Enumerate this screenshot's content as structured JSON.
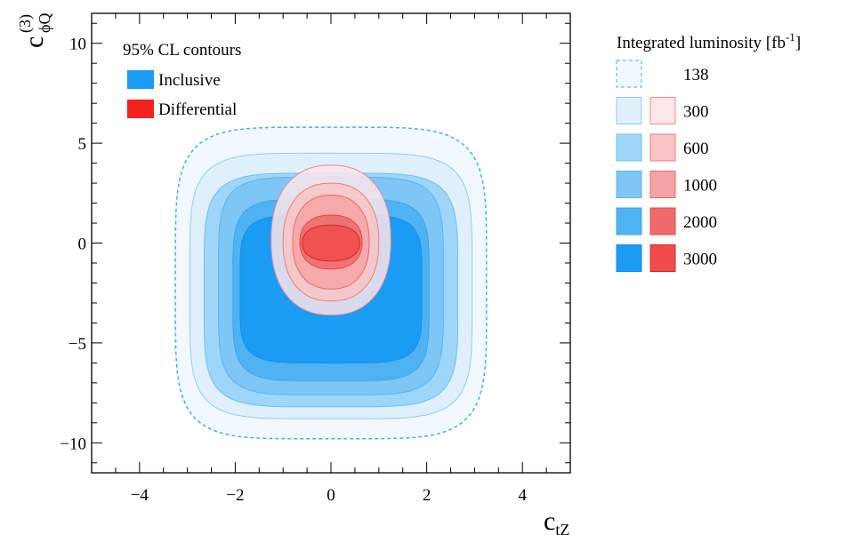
{
  "chart_data": {
    "type": "contour",
    "xlabel": "c",
    "xlabel_sub": "tZ",
    "ylabel": "c",
    "ylabel_sup": "(3)",
    "ylabel_sub": "ϕQ",
    "xlim": [
      -5,
      5
    ],
    "ylim": [
      -11.5,
      11.5
    ],
    "x_ticks": [
      -4,
      -2,
      0,
      2,
      4
    ],
    "x_tick_labels": [
      "−4",
      "−2",
      "0",
      "2",
      "4"
    ],
    "y_ticks": [
      -10,
      -5,
      0,
      5,
      10
    ],
    "y_tick_labels": [
      "−10",
      "−5",
      "0",
      "5",
      "10"
    ],
    "grid": false,
    "inset_legend": {
      "title": "95% CL contours",
      "placement": "top-left",
      "entries": [
        {
          "label": "Inclusive",
          "color": "#1a9cf5"
        },
        {
          "label": "Differential",
          "color": "#f52020"
        }
      ]
    },
    "lumi_legend": {
      "title": "Integrated luminosity [fb",
      "title_sup": "-1",
      "title_end": "]",
      "placement": "right",
      "rows": [
        {
          "label": "138",
          "inclusive": true,
          "differential": false
        },
        {
          "label": "300",
          "inclusive": true,
          "differential": true
        },
        {
          "label": "600",
          "inclusive": true,
          "differential": true
        },
        {
          "label": "1000",
          "inclusive": true,
          "differential": true
        },
        {
          "label": "2000",
          "inclusive": true,
          "differential": true
        },
        {
          "label": "3000",
          "inclusive": true,
          "differential": true
        }
      ]
    },
    "series": [
      {
        "group": "Inclusive",
        "luminosity": "138",
        "x_range": [
          -3.25,
          3.25
        ],
        "y_range": [
          -9.8,
          5.8
        ],
        "style": "dashed",
        "fill": "#f2f9fe",
        "stroke": "#45b0ee"
      },
      {
        "group": "Inclusive",
        "luminosity": "300",
        "x_range": [
          -2.95,
          2.95
        ],
        "y_range": [
          -8.8,
          4.5
        ],
        "fill": "#dff0fc",
        "stroke": "#8ccdf2"
      },
      {
        "group": "Inclusive",
        "luminosity": "600",
        "x_range": [
          -2.65,
          2.65
        ],
        "y_range": [
          -8.2,
          3.5
        ],
        "fill": "#9ed6f9",
        "stroke": "#6fc0f0"
      },
      {
        "group": "Inclusive",
        "luminosity": "1000",
        "x_range": [
          -2.35,
          2.35
        ],
        "y_range": [
          -7.6,
          3.3
        ],
        "fill": "#7ec6f6",
        "stroke": "#5ab4ee"
      },
      {
        "group": "Inclusive",
        "luminosity": "2000",
        "x_range": [
          -2.05,
          2.05
        ],
        "y_range": [
          -6.9,
          2.2
        ],
        "fill": "#4fb3f3",
        "stroke": "#3aa5ec"
      },
      {
        "group": "Inclusive",
        "luminosity": "3000",
        "x_range": [
          -1.9,
          1.9
        ],
        "y_range": [
          -6.0,
          1.4
        ],
        "fill": "#1a9cf5",
        "stroke": "#158ee6"
      },
      {
        "group": "Differential",
        "luminosity": "300",
        "x_range": [
          -1.25,
          1.25
        ],
        "y_range": [
          -3.6,
          3.9
        ],
        "fill": "#fbe6ea",
        "stroke": "#f08a8a"
      },
      {
        "group": "Differential",
        "luminosity": "600",
        "x_range": [
          -1.0,
          1.0
        ],
        "y_range": [
          -2.9,
          3.0
        ],
        "fill": "#f8c4c6",
        "stroke": "#ee7e7e"
      },
      {
        "group": "Differential",
        "luminosity": "1000",
        "x_range": [
          -0.8,
          0.8
        ],
        "y_range": [
          -2.3,
          2.4
        ],
        "fill": "#f4a3a6",
        "stroke": "#ea6a6a"
      },
      {
        "group": "Differential",
        "luminosity": "2000",
        "x_range": [
          -0.65,
          0.65
        ],
        "y_range": [
          -1.3,
          1.4
        ],
        "fill": "#ef6a6a",
        "stroke": "#e04848"
      },
      {
        "group": "Differential",
        "luminosity": "3000",
        "x_range": [
          -0.6,
          0.6
        ],
        "y_range": [
          -0.9,
          0.9
        ],
        "fill": "#f04b4b",
        "stroke": "#d42828"
      }
    ]
  }
}
